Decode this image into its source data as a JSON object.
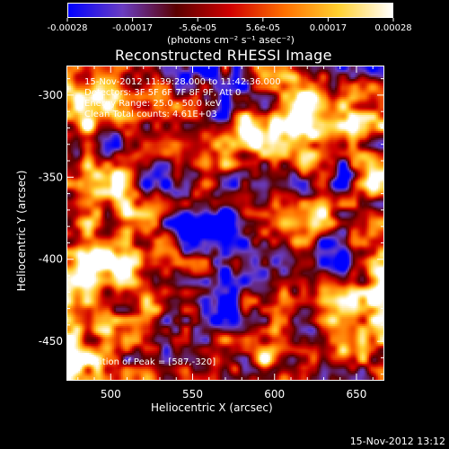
{
  "colorbar": {
    "ticks": [
      "-0.00028",
      "-0.00017",
      "-5.6e-05",
      "5.6e-05",
      "0.00017",
      "0.00028"
    ],
    "unit_label": "(photons cm⁻² s⁻¹ asec⁻²)",
    "colors": [
      "#0000ff",
      "#6a3dc2",
      "#5a0000",
      "#d00000",
      "#ff7000",
      "#ffd030",
      "#ffffff"
    ]
  },
  "annotation": {
    "time_range": "15-Nov-2012 11:39:28.000 to 11:42:36.000",
    "detectors": "Detectors: 3F 5F 6F 7F 8F 9F, Att 0",
    "energy": "Energy Range: 25.0 - 50.0 keV",
    "clean": "Clean    Total counts: 4.61E+03",
    "peak": "Position of Peak = [587,-320]"
  },
  "timestamp": "15-Nov-2012 13:12",
  "chart_data": {
    "type": "heatmap",
    "title": "Reconstructed RHESSI Image",
    "xlabel": "Heliocentric X (arcsec)",
    "ylabel": "Heliocentric Y (arcsec)",
    "xlim": [
      473,
      667
    ],
    "ylim": [
      -474,
      -282
    ],
    "xticks": [
      500,
      550,
      600,
      650
    ],
    "yticks": [
      -300,
      -350,
      -400,
      -450
    ],
    "zlim": [
      -0.00028,
      0.00028
    ],
    "peak": [
      587,
      -320
    ]
  }
}
